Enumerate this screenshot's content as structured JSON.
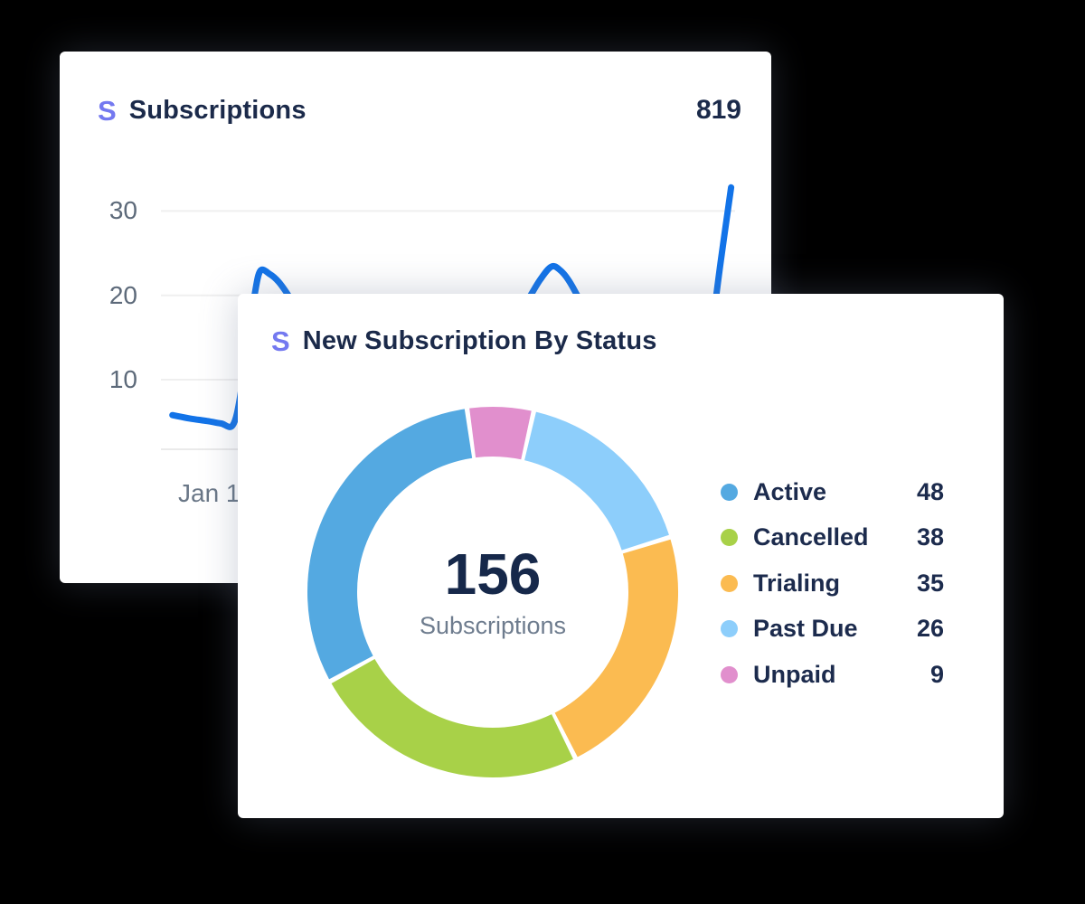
{
  "background_color": "#000000",
  "back_card": {
    "logo": "S",
    "logo_color": "#7479f0",
    "title": "Subscriptions",
    "total": "819",
    "y_ticks": [
      "30",
      "20",
      "10"
    ],
    "x_label": "Jan 1"
  },
  "front_card": {
    "logo": "S",
    "logo_color": "#7479f0",
    "title": "New Subscription By Status",
    "center_value": "156",
    "center_label": "Subscriptions",
    "legend": [
      {
        "label": "Active",
        "value": 48,
        "color": "#54a9e1"
      },
      {
        "label": "Cancelled",
        "value": 38,
        "color": "#a8d148"
      },
      {
        "label": "Trialing",
        "value": 35,
        "color": "#fbbb51"
      },
      {
        "label": "Past Due",
        "value": 26,
        "color": "#8dcefb"
      },
      {
        "label": "Unpaid",
        "value": 9,
        "color": "#e18fcd"
      }
    ]
  },
  "chart_data": [
    {
      "type": "line",
      "title": "Subscriptions",
      "total": 819,
      "ylabel": "",
      "xlabel": "",
      "y_ticks": [
        30,
        20,
        10
      ],
      "ylim_shown": [
        0,
        35
      ],
      "x_tick_labels": [
        "Jan 1"
      ],
      "line_color": "#1273e8",
      "grid": true,
      "note": "line partially occluded by front card; points estimated from visible segments",
      "points_est": [
        [
          2,
          5.8
        ],
        [
          5,
          5.4
        ],
        [
          8,
          5.1
        ],
        [
          10.5,
          4.8
        ],
        [
          12.5,
          4.6
        ],
        [
          13.8,
          8
        ],
        [
          15,
          14.5
        ],
        [
          16.3,
          20
        ],
        [
          17.3,
          22.9
        ],
        [
          19,
          22.5
        ],
        [
          20.5,
          21.6
        ],
        [
          22,
          20.2
        ],
        [
          25,
          17
        ],
        [
          29,
          14.5
        ],
        [
          34,
          12.8
        ],
        [
          39,
          12
        ],
        [
          44,
          11.8
        ],
        [
          49,
          12.3
        ],
        [
          54,
          13.5
        ],
        [
          59,
          15.8
        ],
        [
          63,
          18.6
        ],
        [
          66,
          21.8
        ],
        [
          68,
          23.4
        ],
        [
          69.5,
          23
        ],
        [
          71,
          21.8
        ],
        [
          72.5,
          20
        ],
        [
          75,
          16.8
        ],
        [
          78,
          13
        ],
        [
          81,
          9.6
        ],
        [
          84,
          6.8
        ],
        [
          87,
          4.8
        ],
        [
          89.5,
          3.9
        ],
        [
          91.5,
          4.2
        ],
        [
          93.5,
          7
        ],
        [
          95.5,
          14
        ],
        [
          97.5,
          24
        ],
        [
          99.3,
          32.8
        ]
      ]
    },
    {
      "type": "donut",
      "title": "New Subscription By Status",
      "categories": [
        "Unpaid",
        "Past Due",
        "Trialing",
        "Cancelled",
        "Active"
      ],
      "values": [
        9,
        26,
        35,
        38,
        48
      ],
      "colors": [
        "#e18fcd",
        "#8dcefb",
        "#fbbb51",
        "#a8d148",
        "#54a9e1"
      ],
      "total": 156,
      "center_value": "156",
      "center_label": "Subscriptions",
      "start_angle_deg": -8,
      "clockwise": true,
      "legend_position": "right"
    }
  ]
}
